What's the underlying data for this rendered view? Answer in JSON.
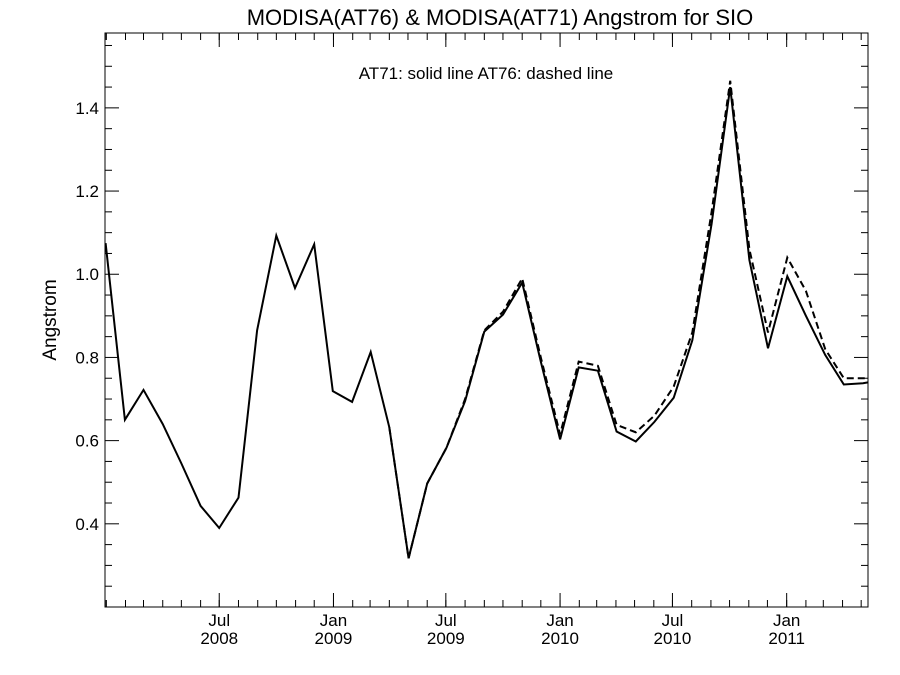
{
  "chart_data": {
    "type": "line",
    "title": "MODISA(AT76) & MODISA(AT71)  Angstrom for SIO",
    "annotation": "AT71: solid line   AT76: dashed line",
    "xlabel": "",
    "ylabel": "Angstrom",
    "xlim": [
      "2007-12-30",
      "2011-05-12"
    ],
    "ylim": [
      0.2,
      1.58
    ],
    "y_ticks": [
      "0.4",
      "0.6",
      "0.8",
      "1.0",
      "1.2",
      "1.4"
    ],
    "x_ticks": [
      {
        "date": "2008-07-01",
        "month": "Jul",
        "year": "2008"
      },
      {
        "date": "2009-01-01",
        "month": "Jan",
        "year": "2009"
      },
      {
        "date": "2009-07-01",
        "month": "Jul",
        "year": "2009"
      },
      {
        "date": "2010-01-01",
        "month": "Jan",
        "year": "2010"
      },
      {
        "date": "2010-07-01",
        "month": "Jul",
        "year": "2010"
      },
      {
        "date": "2011-01-01",
        "month": "Jan",
        "year": "2011"
      }
    ],
    "grid": false,
    "legend": "none",
    "series": [
      {
        "style": "solid",
        "x": [
          "2007-12-31",
          "2008-01-31",
          "2008-03-01",
          "2008-04-01",
          "2008-05-01",
          "2008-06-01",
          "2008-07-01",
          "2008-08-01",
          "2008-08-31",
          "2008-10-01",
          "2008-10-31",
          "2008-12-01",
          "2008-12-31",
          "2009-01-31",
          "2009-03-02",
          "2009-04-01",
          "2009-05-02",
          "2009-06-01",
          "2009-07-02",
          "2009-08-01",
          "2009-09-01",
          "2009-10-01",
          "2009-11-01",
          "2009-12-01",
          "2010-01-01",
          "2010-01-31",
          "2010-03-03",
          "2010-04-02",
          "2010-05-03",
          "2010-06-02",
          "2010-07-03",
          "2010-08-02",
          "2010-09-02",
          "2010-10-02",
          "2010-11-02",
          "2010-12-02",
          "2011-01-02",
          "2011-02-01",
          "2011-03-04",
          "2011-04-03",
          "2011-05-04",
          "2011-05-12"
        ],
        "values": [
          1.075,
          0.65,
          0.722,
          0.64,
          0.545,
          0.443,
          0.39,
          0.463,
          0.865,
          1.093,
          0.967,
          1.072,
          0.719,
          0.693,
          0.813,
          0.632,
          0.317,
          0.497,
          0.583,
          0.695,
          0.862,
          0.903,
          0.98,
          0.79,
          0.603,
          0.776,
          0.768,
          0.622,
          0.598,
          0.645,
          0.703,
          0.841,
          1.121,
          1.45,
          1.034,
          0.822,
          0.995,
          0.9,
          0.806,
          0.735,
          0.738,
          0.74
        ]
      },
      {
        "style": "dashed",
        "x": [
          "2009-04-01",
          "2009-05-02",
          "2009-06-01",
          "2009-07-02",
          "2009-08-01",
          "2009-09-01",
          "2009-10-01",
          "2009-11-01",
          "2009-12-01",
          "2010-01-01",
          "2010-01-31",
          "2010-03-03",
          "2010-04-02",
          "2010-05-03",
          "2010-06-02",
          "2010-07-03",
          "2010-08-02",
          "2010-09-02",
          "2010-10-02",
          "2010-11-02",
          "2010-12-02",
          "2011-01-02",
          "2011-02-01",
          "2011-03-04",
          "2011-04-03",
          "2011-05-12"
        ],
        "values": [
          0.632,
          0.317,
          0.497,
          0.583,
          0.7,
          0.865,
          0.91,
          0.99,
          0.8,
          0.615,
          0.79,
          0.78,
          0.638,
          0.62,
          0.66,
          0.73,
          0.86,
          1.15,
          1.465,
          1.06,
          0.86,
          1.04,
          0.96,
          0.82,
          0.75,
          0.75
        ]
      }
    ]
  }
}
